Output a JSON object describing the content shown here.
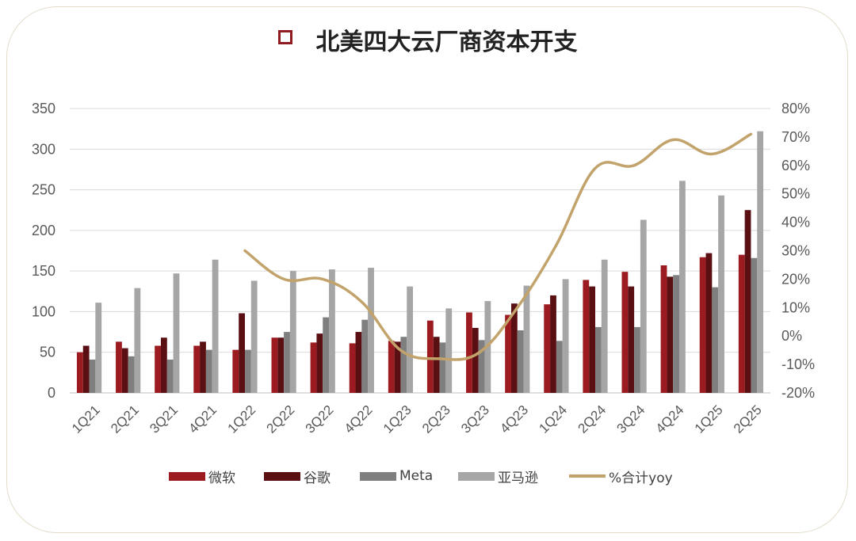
{
  "title": "北美四大云厂商资本开支",
  "legend": [
    "微软",
    "谷歌",
    "Meta",
    "亚马逊",
    "%合计yoy"
  ],
  "colors": {
    "微软": "#9b1b20",
    "谷歌": "#5a0f12",
    "Meta": "#7f7f7f",
    "亚马逊": "#a6a6a6",
    "%合计yoy": "#c2a36b",
    "marker": "#8e1c21"
  },
  "chart_data": {
    "type": "bar",
    "categories": [
      "1Q21",
      "2Q21",
      "3Q21",
      "4Q21",
      "1Q22",
      "2Q22",
      "3Q22",
      "4Q22",
      "1Q23",
      "2Q23",
      "3Q23",
      "4Q23",
      "1Q24",
      "2Q24",
      "3Q24",
      "4Q24",
      "1Q25",
      "2Q25"
    ],
    "series": [
      {
        "name": "微软",
        "values": [
          50,
          63,
          58,
          58,
          53,
          68,
          62,
          61,
          64,
          89,
          99,
          96,
          109,
          139,
          149,
          157,
          167,
          170
        ]
      },
      {
        "name": "谷歌",
        "values": [
          58,
          55,
          68,
          63,
          98,
          68,
          73,
          75,
          63,
          69,
          80,
          110,
          120,
          131,
          131,
          143,
          172,
          225
        ]
      },
      {
        "name": "Meta",
        "values": [
          41,
          45,
          41,
          53,
          53,
          75,
          93,
          90,
          69,
          62,
          65,
          77,
          64,
          81,
          81,
          145,
          130,
          166
        ]
      },
      {
        "name": "亚马逊",
        "values": [
          111,
          129,
          147,
          164,
          138,
          150,
          152,
          154,
          131,
          104,
          113,
          132,
          140,
          164,
          213,
          261,
          243,
          322
        ]
      }
    ],
    "line": {
      "name": "%合计yoy",
      "start_index": 4,
      "values": [
        30,
        20,
        20,
        12,
        -5,
        -8,
        -6,
        10,
        32,
        59,
        60,
        69,
        64,
        71
      ]
    },
    "ylim": [
      0,
      350
    ],
    "yticks": [
      0,
      50,
      100,
      150,
      200,
      250,
      300,
      350
    ],
    "y2lim": [
      -20,
      80
    ],
    "y2ticks": [
      "-20%",
      "-10%",
      "0%",
      "10%",
      "20%",
      "30%",
      "40%",
      "50%",
      "60%",
      "70%",
      "80%"
    ],
    "grid": true,
    "legend_position": "bottom"
  }
}
